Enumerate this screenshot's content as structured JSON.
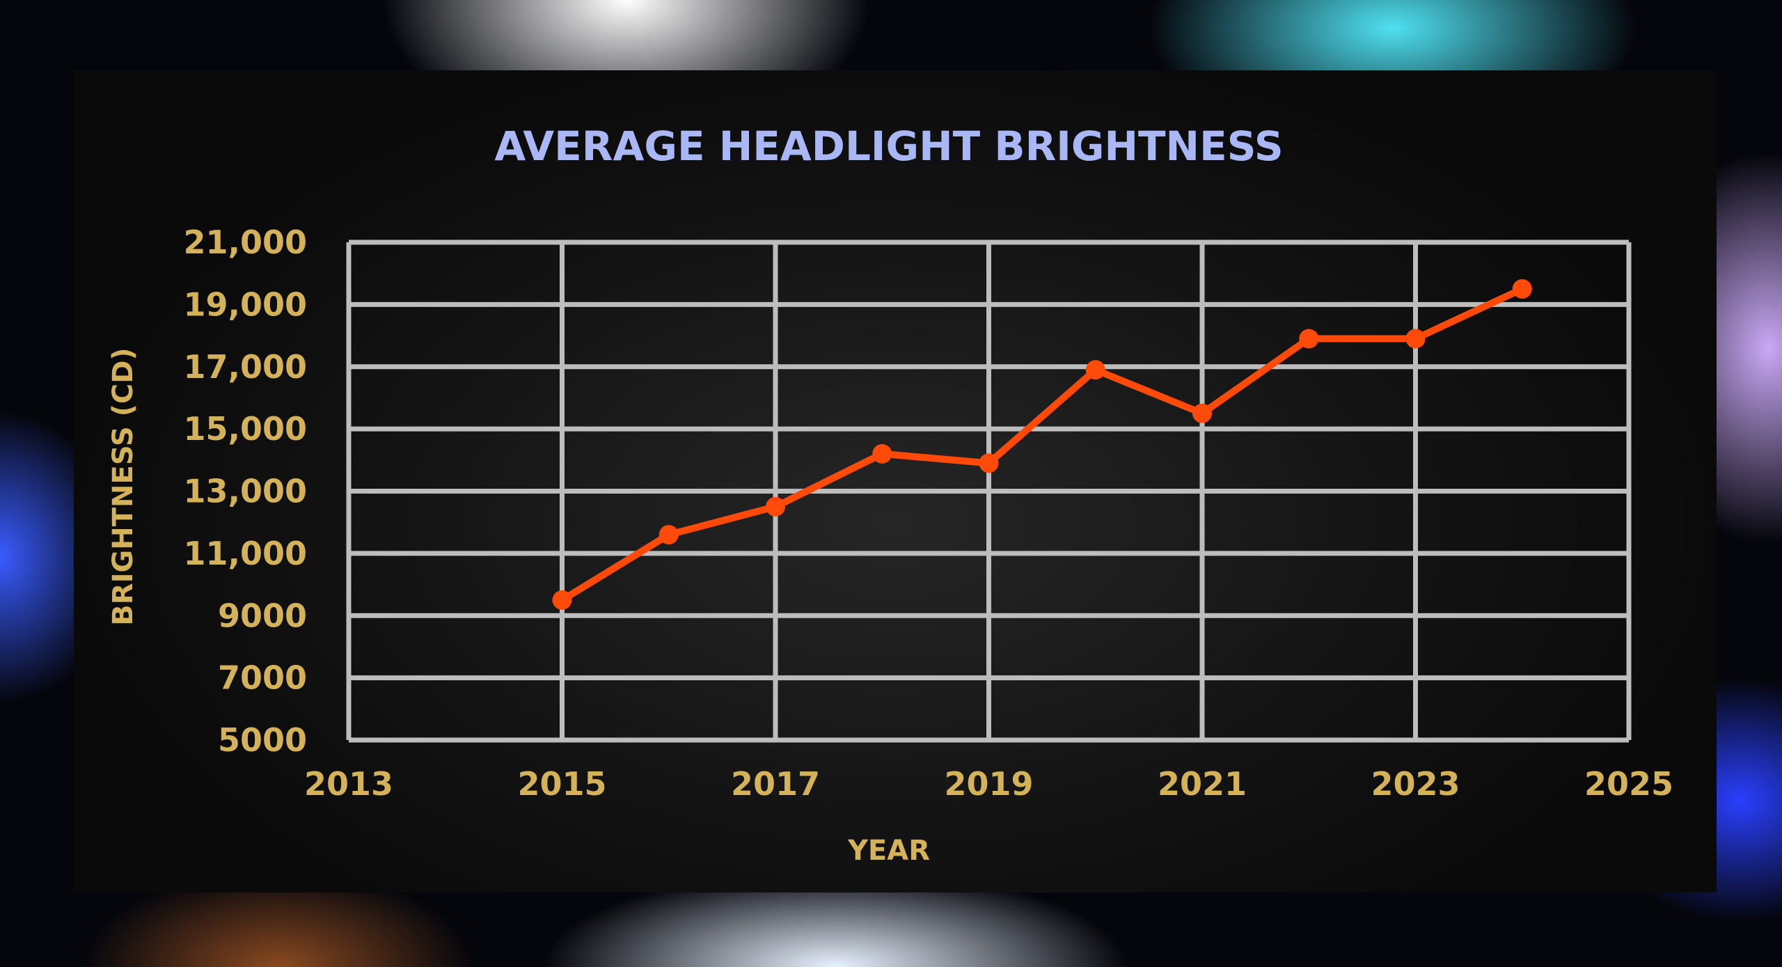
{
  "chart_data": {
    "type": "line",
    "title": "AVERAGE HEADLIGHT BRIGHTNESS",
    "xlabel": "YEAR",
    "ylabel": "BRIGHTNESS (CD)",
    "xlim": [
      2013,
      2025
    ],
    "ylim": [
      5000,
      21000
    ],
    "x_ticks": [
      "2013",
      "2015",
      "2017",
      "2019",
      "2021",
      "2023",
      "2025"
    ],
    "y_ticks": [
      "5000",
      "7000",
      "9000",
      "11,000",
      "13,000",
      "15,000",
      "17,000",
      "19,000",
      "21,000"
    ],
    "grid": true,
    "x": [
      2015,
      2016,
      2017,
      2018,
      2019,
      2020,
      2021,
      2022,
      2023,
      2024
    ],
    "values": [
      9500,
      11600,
      12500,
      14200,
      13900,
      16900,
      15500,
      17900,
      17900,
      19500
    ],
    "colors": {
      "line": "#ff4a0a",
      "grid": "#bdbdbd",
      "title": "#a9b8f5",
      "labels": "#d4b25a"
    }
  }
}
